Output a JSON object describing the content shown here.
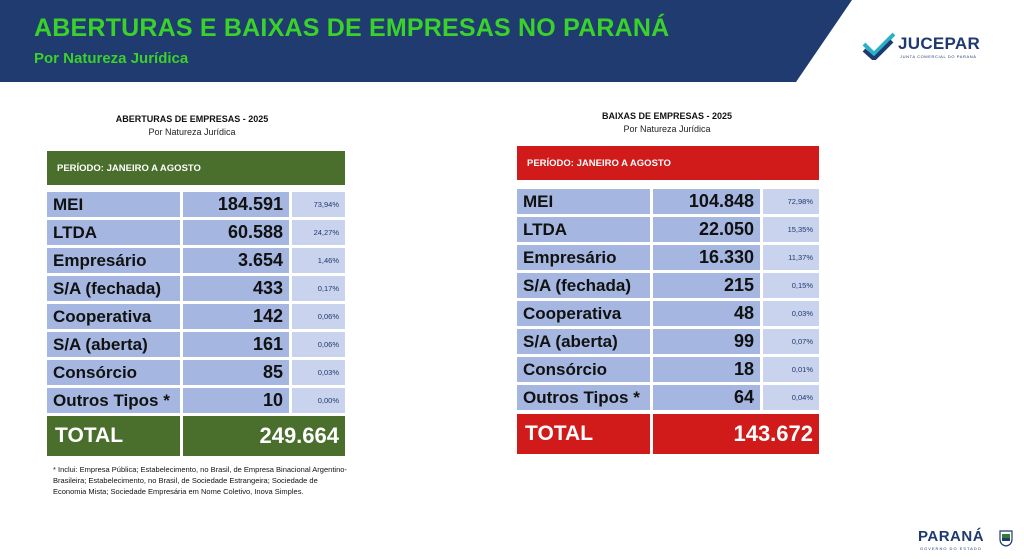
{
  "header": {
    "title": "ABERTURAS E BAIXAS DE EMPRESAS NO PARANÁ",
    "subtitle": "Por Natureza Jurídica",
    "logo_text": "JUCEPAR",
    "logo_sub": "JUNTA COMERCIAL DO PARANÁ",
    "logo_icon": "check-chevron-icon",
    "colors": {
      "banner": "#1f3b6f",
      "title": "#3ad12b"
    }
  },
  "aberturas": {
    "title": "ABERTURAS DE EMPRESAS - 2025",
    "subtitle": "Por Natureza Jurídica",
    "period": "PERÍODO: JANEIRO A AGOSTO",
    "color": "#4a6e2c",
    "rows": [
      {
        "label": "MEI",
        "value": "184.591",
        "pct": "73,94%"
      },
      {
        "label": "LTDA",
        "value": "60.588",
        "pct": "24,27%"
      },
      {
        "label": "Empresário",
        "value": "3.654",
        "pct": "1,46%"
      },
      {
        "label": "S/A (fechada)",
        "value": "433",
        "pct": "0,17%"
      },
      {
        "label": "Cooperativa",
        "value": "142",
        "pct": "0,06%"
      },
      {
        "label": "S/A (aberta)",
        "value": "161",
        "pct": "0,06%"
      },
      {
        "label": "Consórcio",
        "value": "85",
        "pct": "0,03%"
      },
      {
        "label": "Outros Tipos *",
        "value": "10",
        "pct": "0,00%"
      }
    ],
    "total_label": "TOTAL",
    "total_value": "249.664"
  },
  "baixas": {
    "title": "BAIXAS DE EMPRESAS - 2025",
    "subtitle": "Por Natureza Jurídica",
    "period": "PERÍODO: JANEIRO A AGOSTO",
    "color": "#d11a1a",
    "rows": [
      {
        "label": "MEI",
        "value": "104.848",
        "pct": "72,98%"
      },
      {
        "label": "LTDA",
        "value": "22.050",
        "pct": "15,35%"
      },
      {
        "label": "Empresário",
        "value": "16.330",
        "pct": "11,37%"
      },
      {
        "label": "S/A (fechada)",
        "value": "215",
        "pct": "0,15%"
      },
      {
        "label": "Cooperativa",
        "value": "48",
        "pct": "0,03%"
      },
      {
        "label": "S/A (aberta)",
        "value": "99",
        "pct": "0,07%"
      },
      {
        "label": "Consórcio",
        "value": "18",
        "pct": "0,01%"
      },
      {
        "label": "Outros Tipos *",
        "value": "64",
        "pct": "0,04%"
      }
    ],
    "total_label": "TOTAL",
    "total_value": "143.672"
  },
  "footnote": "* Inclui: Empresa Pública; Estabelecimento, no Brasil, de Empresa Binacional Argentino-Brasileira; Estabelecimento, no Brasil, de Sociedade Estrangeira; Sociedade de Economia Mista; Sociedade Empresária em Nome Coletivo, Inova Simples.",
  "footer": {
    "brand": "PARANÁ",
    "brand_sub": "GOVERNO DO ESTADO",
    "crest_icon": "state-crest-icon"
  }
}
